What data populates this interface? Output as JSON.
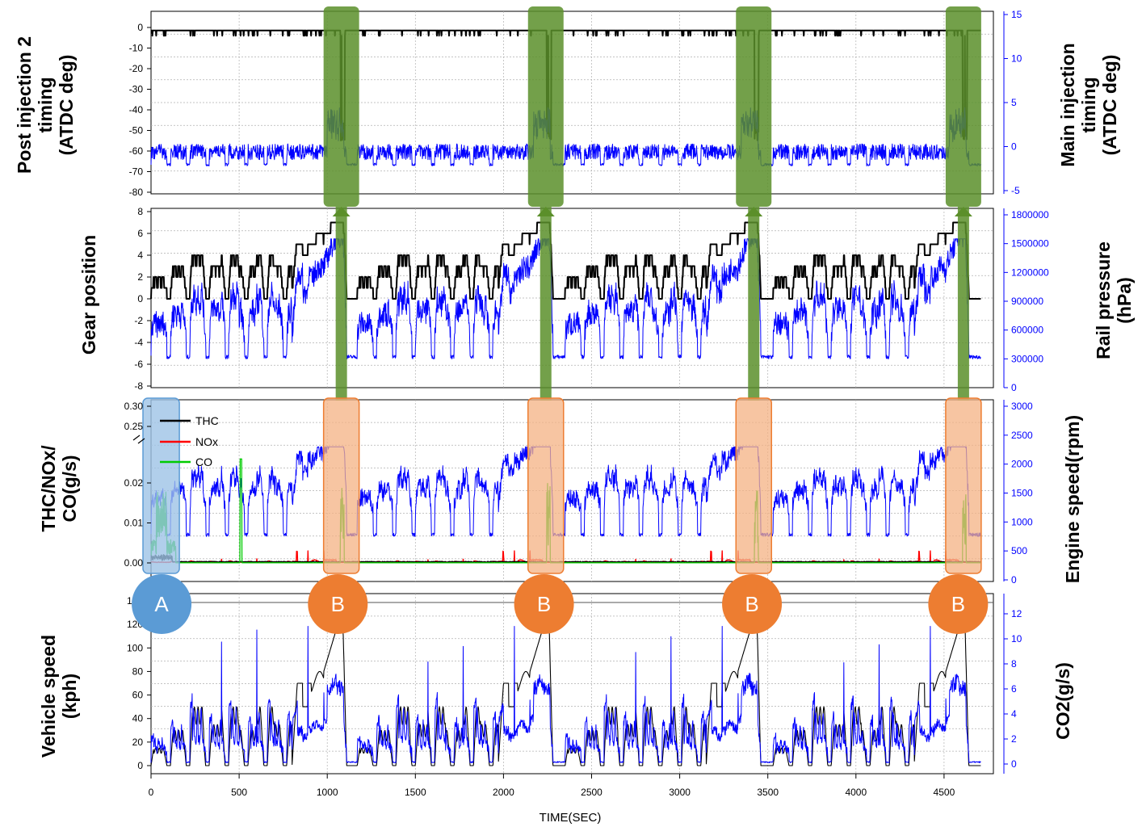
{
  "chart_data": {
    "type": "line",
    "x_title": "TIME(SEC)",
    "x_ticks": [
      "0",
      "500",
      "1000",
      "1500",
      "2000",
      "2500",
      "3000",
      "3500",
      "4000",
      "4500"
    ],
    "x_range": [
      0,
      4780
    ],
    "panels": [
      {
        "left_title": [
          "Post injection 2",
          "timing",
          "(ATDC deg)"
        ],
        "right_title": [
          "Main injection",
          "timing",
          "(ATDC deg)"
        ],
        "left_ticks": [
          "0",
          "-10",
          "-20",
          "-30",
          "-40",
          "-50",
          "-60",
          "-70",
          "-80"
        ],
        "right_ticks": [
          "15",
          "10",
          "5",
          "0",
          "-5"
        ],
        "left_range": [
          -80,
          0
        ],
        "right_range": [
          -5,
          15
        ],
        "series": [
          {
            "axis": "left",
            "color": "#000000",
            "description": "post injection 2 timing, mostly 0 with deep dips at high-speed events"
          },
          {
            "axis": "right",
            "color": "#0000ff",
            "description": "main injection timing, roughly -1 to 0, peaks ~5 at B events"
          }
        ]
      },
      {
        "left_title": [
          "Gear position"
        ],
        "right_title": [
          "Rail pressure",
          "(hPa)"
        ],
        "left_ticks": [
          "8",
          "6",
          "4",
          "2",
          "0",
          "-2",
          "-4",
          "-6",
          "-8"
        ],
        "right_ticks": [
          "1800000",
          "1500000",
          "1200000",
          "900000",
          "600000",
          "300000",
          "0"
        ],
        "left_range": [
          -8,
          8
        ],
        "right_range": [
          0,
          1800000
        ],
        "series": [
          {
            "axis": "left",
            "color": "#000000",
            "description": "gear position 0-7"
          },
          {
            "axis": "right",
            "color": "#0000ff",
            "description": "rail pressure 300000-1500000 hPa"
          }
        ]
      },
      {
        "left_title": [
          "THC/NOx/",
          "CO(g/s)"
        ],
        "right_title": [
          "Engine speed(rpm)"
        ],
        "left_ticks_upper": [
          "0.30",
          "0.25"
        ],
        "left_ticks": [
          "0.02",
          "0.01",
          "0.00"
        ],
        "right_ticks": [
          "3000",
          "2500",
          "2000",
          "1500",
          "1000",
          "500",
          "0"
        ],
        "left_range": [
          0,
          0.03
        ],
        "right_range": [
          0,
          3000
        ],
        "legend": [
          "THC",
          "NOx",
          "CO"
        ],
        "series": [
          {
            "name": "THC",
            "axis": "left",
            "color": "#000000"
          },
          {
            "name": "NOx",
            "axis": "left",
            "color": "#ff0000"
          },
          {
            "name": "CO",
            "axis": "left",
            "color": "#00cc00"
          },
          {
            "axis": "right",
            "color": "#0000ff",
            "description": "engine speed"
          }
        ]
      },
      {
        "left_title": [
          "Vehicle speed",
          "(kph)"
        ],
        "right_title": [
          "CO2(g/s)"
        ],
        "left_ticks": [
          "140",
          "120",
          "100",
          "80",
          "60",
          "40",
          "20",
          "0"
        ],
        "right_ticks": [
          "12",
          "10",
          "8",
          "6",
          "4",
          "2",
          "0"
        ],
        "left_range": [
          0,
          140
        ],
        "right_range": [
          0,
          12
        ],
        "series": [
          {
            "axis": "left",
            "color": "#000000",
            "description": "vehicle speed"
          },
          {
            "axis": "right",
            "color": "#0000ff",
            "description": "CO2 emission rate"
          }
        ]
      }
    ],
    "highlight_events": {
      "green_columns_x": [
        1080,
        2240,
        3420,
        4610
      ],
      "orange_boxes_x": [
        1080,
        2240,
        3420,
        4610
      ],
      "blue_box_x": [
        0,
        170
      ],
      "markers": [
        {
          "label": "A",
          "x": 60,
          "color": "#5b9bd5"
        },
        {
          "label": "B",
          "x": 1060,
          "color": "#ed7d31"
        },
        {
          "label": "B",
          "x": 2230,
          "color": "#ed7d31"
        },
        {
          "label": "B",
          "x": 3410,
          "color": "#ed7d31"
        },
        {
          "label": "B",
          "x": 4580,
          "color": "#ed7d31"
        }
      ]
    }
  }
}
